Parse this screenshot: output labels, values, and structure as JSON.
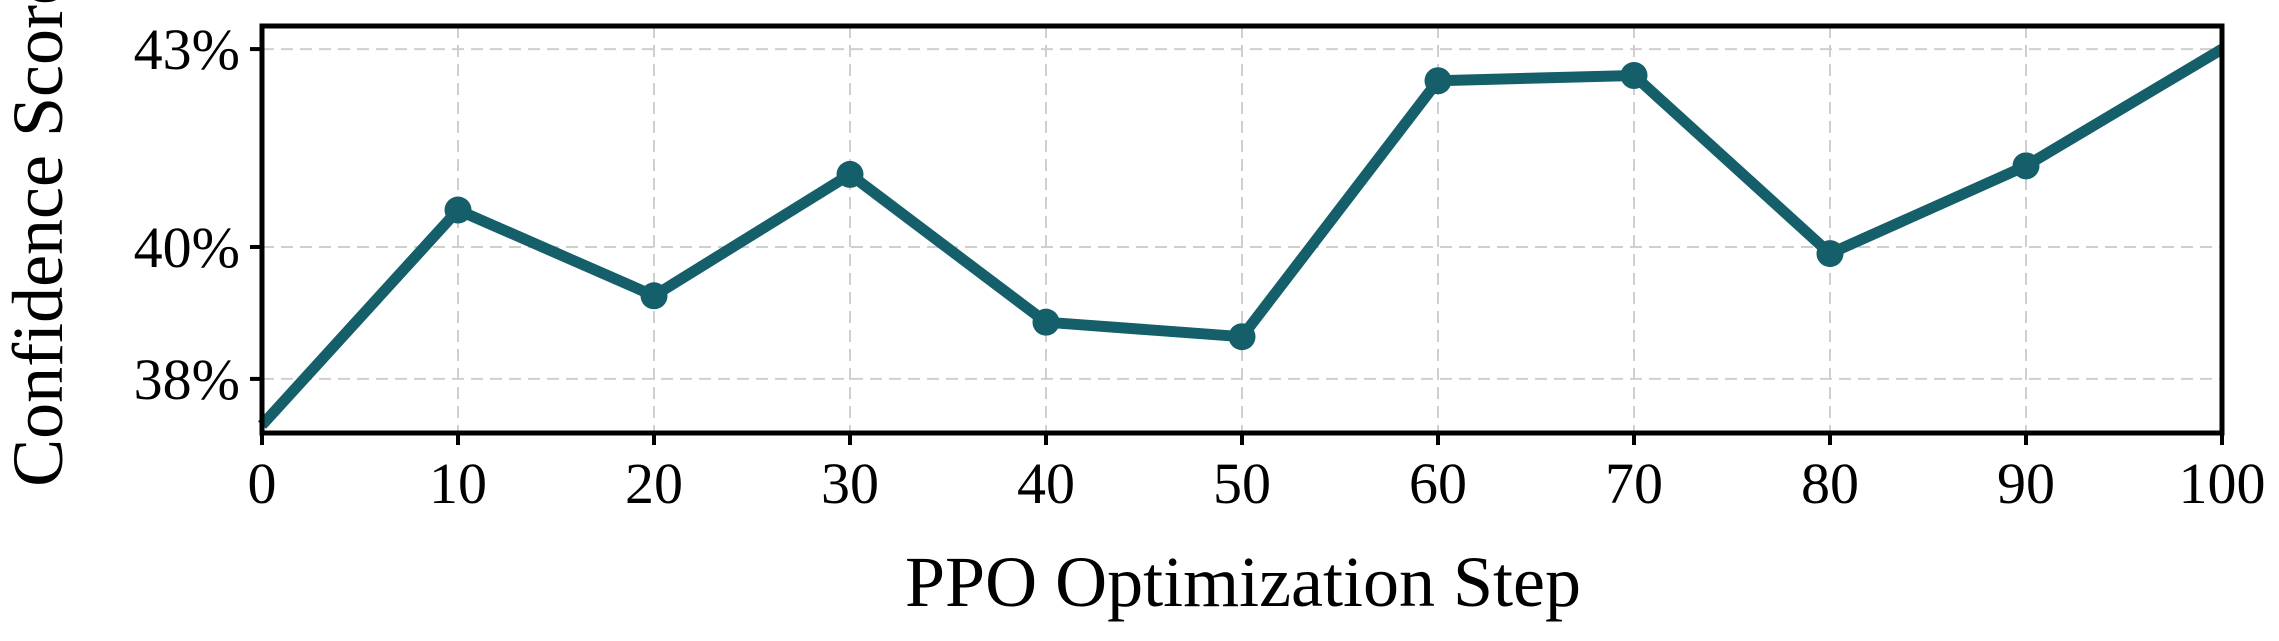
{
  "colors": {
    "series": "#145f6a",
    "grid": "#cfcfcf",
    "frame": "#000000"
  },
  "chart_data": {
    "type": "line",
    "title": "",
    "xlabel": "PPO Optimization Step",
    "ylabel": "Confidence Score",
    "x": [
      0,
      10,
      20,
      30,
      40,
      50,
      60,
      70,
      80,
      90,
      100
    ],
    "series": [
      {
        "values": [
          37.3,
          40.56,
          39.26,
          41.1,
          38.86,
          38.64,
          42.52,
          42.6,
          39.9,
          41.23,
          43.0
        ],
        "markers": [
          false,
          true,
          true,
          true,
          true,
          true,
          true,
          true,
          true,
          true,
          false
        ]
      }
    ],
    "xlim": [
      0,
      100
    ],
    "ylim": [
      37.18,
      43.35
    ],
    "xticks": [
      0,
      10,
      20,
      30,
      40,
      50,
      60,
      70,
      80,
      90,
      100
    ],
    "xtick_labels": [
      "0",
      "10",
      "20",
      "30",
      "40",
      "50",
      "60",
      "70",
      "80",
      "90",
      "100"
    ],
    "yticks": [
      38,
      40,
      43
    ],
    "ytick_labels": [
      "38%",
      "40%",
      "43%"
    ],
    "ytick_values_plot": [
      38,
      40,
      43
    ],
    "grid": true,
    "legend": "none"
  }
}
